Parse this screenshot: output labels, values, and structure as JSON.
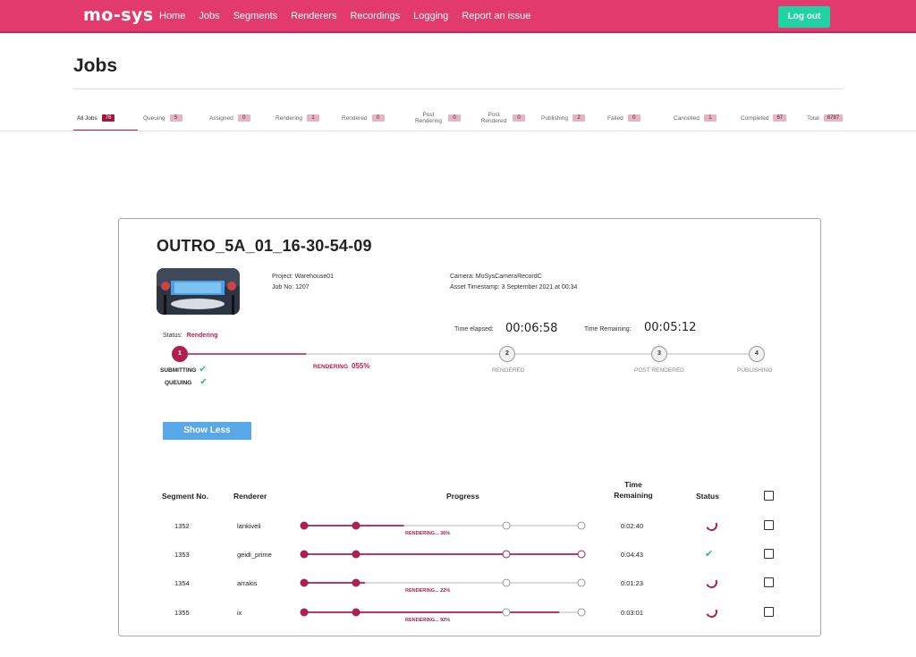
{
  "nav": {
    "logo": "mo-sys",
    "links": [
      "Home",
      "Jobs",
      "Segments",
      "Renderers",
      "Recordings",
      "Logging",
      "Report an issue"
    ],
    "logout": "Log out"
  },
  "page_title": "Jobs",
  "tabs": [
    {
      "label": "All Jobs",
      "count": "76",
      "active": true
    },
    {
      "label": "Queuing",
      "count": "5"
    },
    {
      "label": "Assigned",
      "count": "0"
    },
    {
      "label": "Rendering",
      "count": "1"
    },
    {
      "label": "Rendered",
      "count": "0"
    },
    {
      "label": "Post Rendering",
      "count": "0"
    },
    {
      "label": "Post Rendered",
      "count": "0"
    },
    {
      "label": "Publishing",
      "count": "2"
    },
    {
      "label": "Failed",
      "count": "0"
    },
    {
      "label": "Cancelled",
      "count": "1"
    },
    {
      "label": "Completed",
      "count": "67"
    },
    {
      "label": "Total",
      "count": "6787"
    }
  ],
  "job": {
    "title": "OUTRO_5A_01_16-30-54-09",
    "project": "Project: Warehouse01",
    "job_no": "Job No: 1207",
    "camera": "Camera: MoSysCameraRecordC",
    "asset_timestamp": "Asset Timestamp: 3 September 2021 at 00:34",
    "time_elapsed_label": "Time elapsed:",
    "time_elapsed": "00:06:58",
    "time_remaining_label": "Time Remaining:",
    "time_remaining": "00:05:12",
    "status_label": "Status:",
    "status": "Rendering",
    "progress_pct": 55,
    "steps": [
      {
        "num": "1",
        "label": "RENDERING",
        "pct": "055%"
      },
      {
        "num": "2",
        "label": "RENDERED"
      },
      {
        "num": "3",
        "label": "POST RENDERED"
      },
      {
        "num": "4",
        "label": "PUBLISHING"
      }
    ],
    "done": [
      "SUBMITTING",
      "QUEUING"
    ],
    "show_less": "Show Less"
  },
  "table": {
    "headers": {
      "segment": "Segment No.",
      "renderer": "Renderer",
      "progress": "Progress",
      "time_remaining_1": "Time",
      "time_remaining_2": "Remaining",
      "status": "Status"
    },
    "rows": [
      {
        "segment": "1352",
        "renderer": "lankiveli",
        "progress_label": "RENDERING... 36%",
        "progress": 0.36,
        "time": "0:02:40",
        "status": "in-progress"
      },
      {
        "segment": "1353",
        "renderer": "geidi_prime",
        "progress_label": "",
        "progress": 1.0,
        "time": "0:04:43",
        "status": "done"
      },
      {
        "segment": "1354",
        "renderer": "arrakis",
        "progress_label": "RENDERING... 22%",
        "progress": 0.22,
        "time": "0:01:23",
        "status": "in-progress"
      },
      {
        "segment": "1355",
        "renderer": "ix",
        "progress_label": "RENDERING... 92%",
        "progress": 0.92,
        "time": "0:03:01",
        "status": "in-progress"
      }
    ]
  },
  "colors": {
    "brand": "#e33a6e",
    "accent": "#b01f4d",
    "logout": "#1fd3a3",
    "button": "#59a9e8",
    "success": "#2ebd62"
  }
}
